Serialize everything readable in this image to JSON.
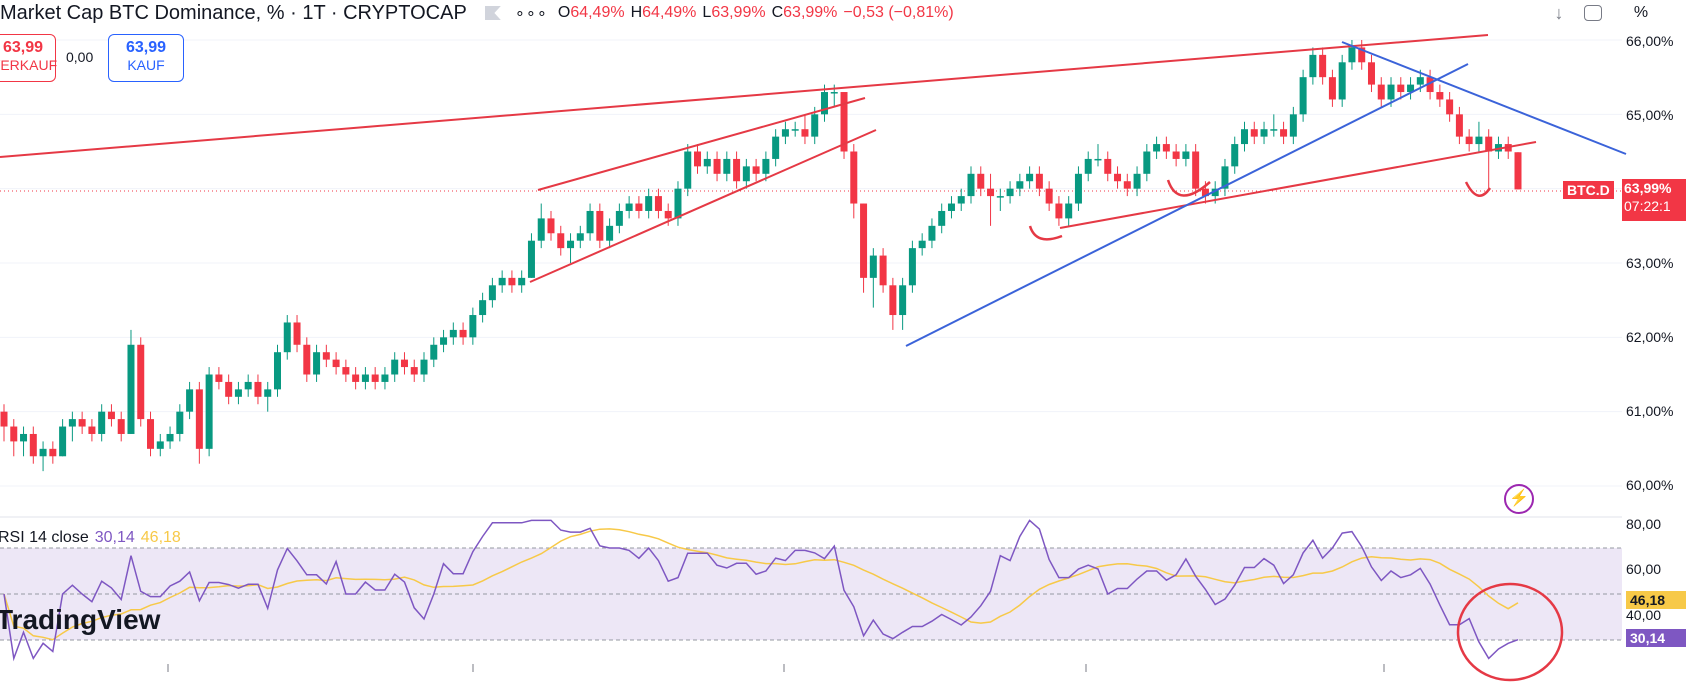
{
  "header": {
    "symbol_title": "Market Cap BTC Dominance, % · 1T · CRYPTOCAP",
    "more_icon": "more-dots-icon",
    "ohlc": {
      "o_label": "O",
      "o_value": "64,49%",
      "h_label": "H",
      "h_value": "64,49%",
      "l_label": "L",
      "l_value": "63,99%",
      "c_label": "C",
      "c_value": "63,99%",
      "change": "−0,53 (−0,81%)"
    }
  },
  "trade": {
    "sell_price": "63,99",
    "sell_label": "VERKAUF",
    "spread": "0,00",
    "buy_price": "63,99",
    "buy_label": "KAUF"
  },
  "toolbar": {
    "download_icon": "download-icon",
    "fullscreen_icon": "fullscreen-icon",
    "percent_label": "%"
  },
  "price_axis": {
    "labels": [
      "66,00%",
      "65,00%",
      "63,00%",
      "62,00%",
      "61,00%",
      "60,00%"
    ],
    "symbol_tag": "BTC.D",
    "last_price": "63,99%",
    "countdown": "07:22:1"
  },
  "rsi": {
    "legend_prefix": "RSI 14 close",
    "value": "30,14",
    "ma_value": "46,18",
    "axis_labels": [
      "80,00",
      "60,00",
      "40,00"
    ],
    "value_tag": "30,14",
    "ma_tag": "46,18"
  },
  "branding": {
    "logo_text": "TradingView"
  },
  "colors": {
    "up": "#089981",
    "down": "#f23645",
    "trend_red": "#e53945",
    "trend_blue": "#3b63d9",
    "rsi_line": "#7e57c2",
    "rsi_ma": "#f7c948",
    "rsi_band": "#ede7f6"
  },
  "chart_data": {
    "type": "candlestick",
    "title": "Market Cap BTC Dominance, % · 1T · CRYPTOCAP",
    "y_unit": "%",
    "ylim": [
      59.6,
      66.5
    ],
    "candles_ohlc": [
      [
        61.0,
        61.1,
        60.6,
        60.8
      ],
      [
        60.8,
        60.9,
        60.4,
        60.6
      ],
      [
        60.6,
        60.8,
        60.4,
        60.7
      ],
      [
        60.7,
        60.8,
        60.3,
        60.4
      ],
      [
        60.4,
        60.6,
        60.2,
        60.5
      ],
      [
        60.5,
        60.6,
        60.3,
        60.4
      ],
      [
        60.4,
        60.9,
        60.4,
        60.8
      ],
      [
        60.8,
        61.0,
        60.6,
        60.9
      ],
      [
        60.9,
        61.0,
        60.7,
        60.8
      ],
      [
        60.8,
        60.9,
        60.6,
        60.7
      ],
      [
        60.7,
        61.1,
        60.6,
        61.0
      ],
      [
        61.0,
        61.1,
        60.8,
        60.9
      ],
      [
        60.9,
        61.0,
        60.6,
        60.7
      ],
      [
        60.7,
        62.1,
        60.7,
        61.9
      ],
      [
        61.9,
        62.0,
        60.8,
        60.9
      ],
      [
        60.9,
        61.0,
        60.4,
        60.5
      ],
      [
        60.5,
        60.7,
        60.4,
        60.6
      ],
      [
        60.6,
        60.8,
        60.5,
        60.7
      ],
      [
        60.7,
        61.1,
        60.6,
        61.0
      ],
      [
        61.0,
        61.4,
        60.9,
        61.3
      ],
      [
        61.3,
        61.4,
        60.3,
        60.5
      ],
      [
        60.5,
        61.6,
        60.4,
        61.5
      ],
      [
        61.5,
        61.6,
        61.3,
        61.4
      ],
      [
        61.4,
        61.5,
        61.1,
        61.2
      ],
      [
        61.2,
        61.4,
        61.1,
        61.3
      ],
      [
        61.3,
        61.5,
        61.2,
        61.4
      ],
      [
        61.4,
        61.5,
        61.1,
        61.2
      ],
      [
        61.2,
        61.4,
        61.0,
        61.3
      ],
      [
        61.3,
        61.9,
        61.2,
        61.8
      ],
      [
        61.8,
        62.3,
        61.7,
        62.2
      ],
      [
        62.2,
        62.3,
        61.8,
        61.9
      ],
      [
        61.9,
        62.0,
        61.4,
        61.5
      ],
      [
        61.5,
        61.9,
        61.4,
        61.8
      ],
      [
        61.8,
        61.9,
        61.6,
        61.7
      ],
      [
        61.7,
        61.8,
        61.5,
        61.6
      ],
      [
        61.6,
        61.7,
        61.4,
        61.5
      ],
      [
        61.5,
        61.6,
        61.3,
        61.4
      ],
      [
        61.4,
        61.6,
        61.3,
        61.5
      ],
      [
        61.5,
        61.6,
        61.3,
        61.4
      ],
      [
        61.4,
        61.6,
        61.3,
        61.5
      ],
      [
        61.5,
        61.8,
        61.4,
        61.7
      ],
      [
        61.7,
        61.8,
        61.5,
        61.6
      ],
      [
        61.6,
        61.7,
        61.4,
        61.5
      ],
      [
        61.5,
        61.8,
        61.4,
        61.7
      ],
      [
        61.7,
        62.0,
        61.6,
        61.9
      ],
      [
        61.9,
        62.1,
        61.8,
        62.0
      ],
      [
        62.0,
        62.2,
        61.9,
        62.1
      ],
      [
        62.1,
        62.2,
        61.9,
        62.0
      ],
      [
        62.0,
        62.4,
        61.9,
        62.3
      ],
      [
        62.3,
        62.6,
        62.2,
        62.5
      ],
      [
        62.5,
        62.8,
        62.4,
        62.7
      ],
      [
        62.7,
        62.9,
        62.6,
        62.8
      ],
      [
        62.8,
        62.9,
        62.6,
        62.7
      ],
      [
        62.7,
        62.9,
        62.6,
        62.8
      ],
      [
        62.8,
        63.4,
        62.8,
        63.3
      ],
      [
        63.3,
        63.8,
        63.2,
        63.6
      ],
      [
        63.6,
        63.7,
        63.3,
        63.4
      ],
      [
        63.4,
        63.5,
        63.1,
        63.2
      ],
      [
        63.2,
        63.4,
        63.0,
        63.3
      ],
      [
        63.3,
        63.5,
        63.2,
        63.4
      ],
      [
        63.4,
        63.8,
        63.3,
        63.7
      ],
      [
        63.7,
        63.8,
        63.2,
        63.3
      ],
      [
        63.3,
        63.6,
        63.2,
        63.5
      ],
      [
        63.5,
        63.8,
        63.4,
        63.7
      ],
      [
        63.7,
        63.9,
        63.6,
        63.8
      ],
      [
        63.8,
        63.9,
        63.6,
        63.7
      ],
      [
        63.7,
        64.0,
        63.6,
        63.9
      ],
      [
        63.9,
        64.0,
        63.6,
        63.7
      ],
      [
        63.7,
        63.8,
        63.5,
        63.6
      ],
      [
        63.6,
        64.1,
        63.5,
        64.0
      ],
      [
        64.0,
        64.6,
        63.9,
        64.5
      ],
      [
        64.5,
        64.6,
        64.2,
        64.3
      ],
      [
        64.3,
        64.5,
        64.2,
        64.4
      ],
      [
        64.4,
        64.5,
        64.1,
        64.2
      ],
      [
        64.2,
        64.5,
        64.1,
        64.4
      ],
      [
        64.4,
        64.5,
        64.0,
        64.1
      ],
      [
        64.1,
        64.4,
        64.0,
        64.3
      ],
      [
        64.3,
        64.4,
        64.1,
        64.2
      ],
      [
        64.2,
        64.5,
        64.1,
        64.4
      ],
      [
        64.4,
        64.8,
        64.3,
        64.7
      ],
      [
        64.7,
        64.9,
        64.6,
        64.8
      ],
      [
        64.8,
        64.9,
        64.7,
        64.8
      ],
      [
        64.8,
        65.0,
        64.6,
        64.7
      ],
      [
        64.7,
        65.1,
        64.6,
        65.0
      ],
      [
        65.0,
        65.4,
        64.9,
        65.3
      ],
      [
        65.3,
        65.4,
        65.1,
        65.3
      ],
      [
        65.3,
        65.3,
        64.4,
        64.5
      ],
      [
        64.5,
        64.6,
        63.6,
        63.8
      ],
      [
        63.8,
        63.8,
        62.6,
        62.8
      ],
      [
        62.8,
        63.2,
        62.4,
        63.1
      ],
      [
        63.1,
        63.2,
        62.6,
        62.7
      ],
      [
        62.7,
        62.8,
        62.1,
        62.3
      ],
      [
        62.3,
        62.8,
        62.1,
        62.7
      ],
      [
        62.7,
        63.3,
        62.6,
        63.2
      ],
      [
        63.2,
        63.4,
        63.1,
        63.3
      ],
      [
        63.3,
        63.6,
        63.2,
        63.5
      ],
      [
        63.5,
        63.8,
        63.4,
        63.7
      ],
      [
        63.7,
        63.9,
        63.6,
        63.8
      ],
      [
        63.8,
        64.0,
        63.7,
        63.9
      ],
      [
        63.9,
        64.3,
        63.8,
        64.2
      ],
      [
        64.2,
        64.3,
        63.9,
        64.0
      ],
      [
        64.0,
        64.2,
        63.5,
        63.9
      ],
      [
        63.9,
        64.0,
        63.7,
        63.9
      ],
      [
        63.9,
        64.1,
        63.8,
        64.0
      ],
      [
        64.0,
        64.2,
        63.9,
        64.1
      ],
      [
        64.1,
        64.3,
        64.0,
        64.2
      ],
      [
        64.2,
        64.3,
        63.9,
        64.0
      ],
      [
        64.0,
        64.1,
        63.7,
        63.8
      ],
      [
        63.8,
        63.9,
        63.5,
        63.6
      ],
      [
        63.6,
        63.9,
        63.5,
        63.8
      ],
      [
        63.8,
        64.3,
        63.7,
        64.2
      ],
      [
        64.2,
        64.5,
        64.1,
        64.4
      ],
      [
        64.4,
        64.6,
        64.3,
        64.4
      ],
      [
        64.4,
        64.5,
        64.1,
        64.2
      ],
      [
        64.2,
        64.3,
        64.0,
        64.1
      ],
      [
        64.1,
        64.2,
        63.9,
        64.0
      ],
      [
        64.0,
        64.3,
        63.9,
        64.2
      ],
      [
        64.2,
        64.6,
        64.1,
        64.5
      ],
      [
        64.5,
        64.7,
        64.4,
        64.6
      ],
      [
        64.6,
        64.7,
        64.4,
        64.5
      ],
      [
        64.5,
        64.6,
        64.3,
        64.4
      ],
      [
        64.4,
        64.6,
        64.3,
        64.5
      ],
      [
        64.5,
        64.6,
        63.9,
        64.0
      ],
      [
        64.0,
        64.1,
        63.8,
        63.9
      ],
      [
        63.9,
        64.1,
        63.8,
        64.0
      ],
      [
        64.0,
        64.4,
        63.9,
        64.3
      ],
      [
        64.3,
        64.7,
        64.2,
        64.6
      ],
      [
        64.6,
        64.9,
        64.5,
        64.8
      ],
      [
        64.8,
        64.9,
        64.6,
        64.7
      ],
      [
        64.7,
        64.9,
        64.6,
        64.8
      ],
      [
        64.8,
        65.0,
        64.7,
        64.8
      ],
      [
        64.8,
        64.9,
        64.6,
        64.7
      ],
      [
        64.7,
        65.1,
        64.6,
        65.0
      ],
      [
        65.0,
        65.6,
        64.9,
        65.5
      ],
      [
        65.5,
        65.9,
        65.4,
        65.8
      ],
      [
        65.8,
        65.9,
        65.4,
        65.5
      ],
      [
        65.5,
        65.6,
        65.1,
        65.2
      ],
      [
        65.2,
        65.8,
        65.1,
        65.7
      ],
      [
        65.7,
        66.0,
        65.6,
        65.9
      ],
      [
        65.9,
        66.0,
        65.6,
        65.7
      ],
      [
        65.7,
        65.8,
        65.3,
        65.4
      ],
      [
        65.4,
        65.5,
        65.1,
        65.2
      ],
      [
        65.2,
        65.5,
        65.1,
        65.4
      ],
      [
        65.4,
        65.5,
        65.2,
        65.3
      ],
      [
        65.3,
        65.5,
        65.2,
        65.4
      ],
      [
        65.4,
        65.6,
        65.3,
        65.5
      ],
      [
        65.5,
        65.6,
        65.2,
        65.3
      ],
      [
        65.3,
        65.4,
        65.1,
        65.2
      ],
      [
        65.2,
        65.3,
        64.9,
        65.0
      ],
      [
        65.0,
        65.1,
        64.6,
        64.7
      ],
      [
        64.7,
        64.8,
        64.5,
        64.6
      ],
      [
        64.6,
        64.9,
        64.5,
        64.7
      ],
      [
        64.7,
        64.8,
        64.0,
        64.5
      ],
      [
        64.5,
        64.7,
        64.4,
        64.6
      ],
      [
        64.6,
        64.7,
        64.4,
        64.5
      ],
      [
        64.49,
        64.49,
        63.99,
        63.99
      ]
    ],
    "annotations": [
      "red trendlines (rising wedge, long resistance)",
      "blue trendlines",
      "hand-drawn red markers"
    ]
  }
}
